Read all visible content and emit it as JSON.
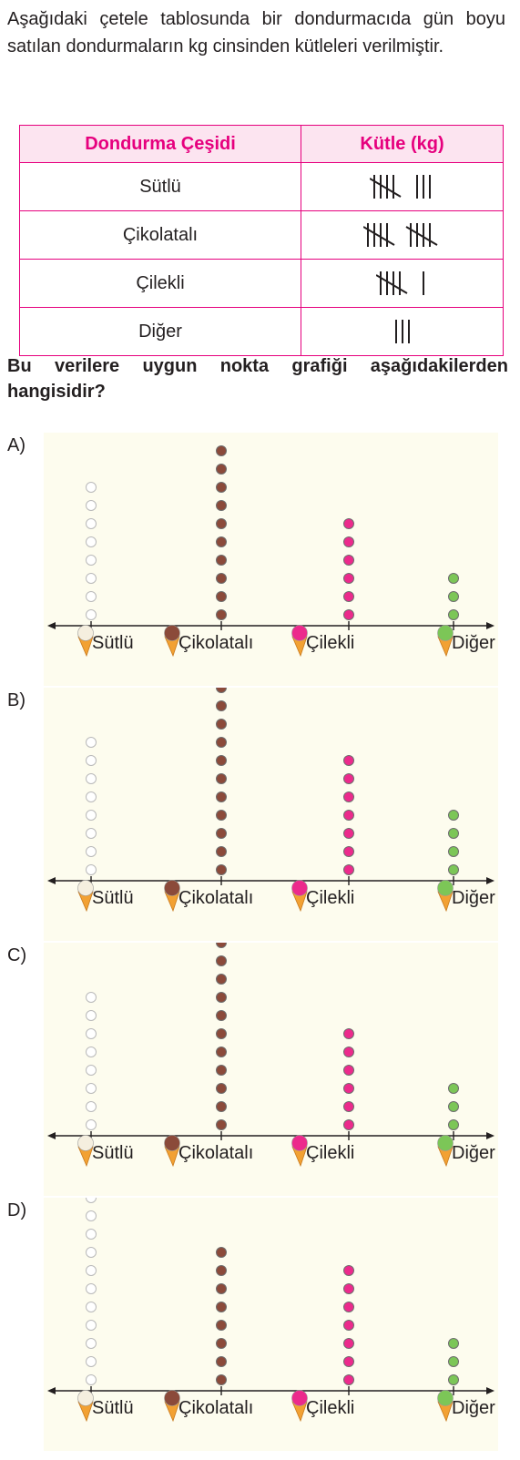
{
  "intro": "Aşağıdaki çetele tablosunda bir dondurmacıda gün boyu satılan dondurmaların kg cinsinden kütleleri verilmiştir.",
  "table": {
    "headers": [
      "Dondurma Çeşidi",
      "Kütle (kg)"
    ],
    "rows": [
      {
        "label": "Sütlü",
        "tally": 8
      },
      {
        "label": "Çikolatalı",
        "tally": 10
      },
      {
        "label": "Çilekli",
        "tally": 6
      },
      {
        "label": "Diğer",
        "tally": 3
      }
    ]
  },
  "question": "Bu verilere uygun nokta grafiği aşağıdakilerden hangisidir?",
  "colors": {
    "Sütlü": "#ffffff",
    "Çikolatalı": "#8b4a3a",
    "Çilekli": "#ec2a8c",
    "Diğer": "#7cc657",
    "table_border": "#e6007e"
  },
  "chart_data": [
    {
      "type": "scatter",
      "option": "A)",
      "categories": [
        "Sütlü",
        "Çikolatalı",
        "Çilekli",
        "Diğer"
      ],
      "values": [
        8,
        10,
        6,
        3
      ]
    },
    {
      "type": "scatter",
      "option": "B)",
      "categories": [
        "Sütlü",
        "Çikolatalı",
        "Çilekli",
        "Diğer"
      ],
      "values": [
        8,
        11,
        7,
        4
      ]
    },
    {
      "type": "scatter",
      "option": "C)",
      "categories": [
        "Sütlü",
        "Çikolatalı",
        "Çilekli",
        "Diğer"
      ],
      "values": [
        8,
        11,
        6,
        3
      ]
    },
    {
      "type": "scatter",
      "option": "D)",
      "categories": [
        "Sütlü",
        "Çikolatalı",
        "Çilekli",
        "Diğer"
      ],
      "values": [
        11,
        8,
        7,
        3
      ]
    }
  ]
}
